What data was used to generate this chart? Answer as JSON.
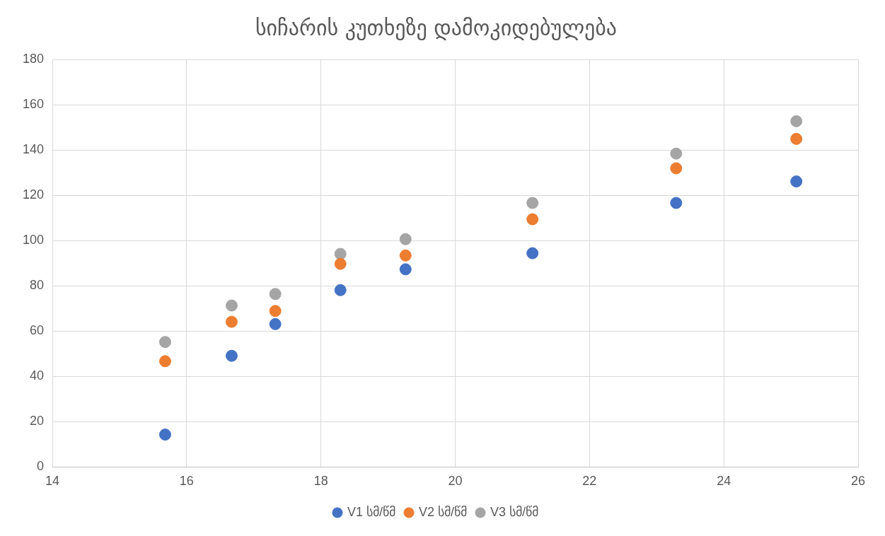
{
  "chart_data": {
    "type": "scatter",
    "title": "სიჩარის კუთხეზე დამოკიდებულება",
    "x": [
      15.68,
      16.67,
      17.32,
      18.29,
      19.26,
      21.15,
      23.29,
      25.08
    ],
    "series": [
      {
        "name": "V1 სმ/წმ",
        "color": "#4472c4",
        "values": [
          14.3,
          49.1,
          63.1,
          78.1,
          87.3,
          94.4,
          116.6,
          126.1
        ]
      },
      {
        "name": "V2 სმ/წმ",
        "color": "#ed7d31",
        "values": [
          46.7,
          64.1,
          68.9,
          89.7,
          93.4,
          109.4,
          131.9,
          144.9
        ]
      },
      {
        "name": "V3 სმ/წმ",
        "color": "#a5a5a5",
        "values": [
          55.2,
          71.3,
          76.4,
          94.1,
          100.6,
          116.6,
          138.4,
          152.7
        ]
      }
    ],
    "xlim": [
      14,
      26
    ],
    "xticks": [
      14,
      16,
      18,
      20,
      22,
      24,
      26
    ],
    "ylim": [
      0,
      180
    ],
    "yticks": [
      0,
      20,
      40,
      60,
      80,
      100,
      120,
      140,
      160,
      180
    ],
    "grid": true,
    "legend": "bottom",
    "marker": "circle"
  }
}
